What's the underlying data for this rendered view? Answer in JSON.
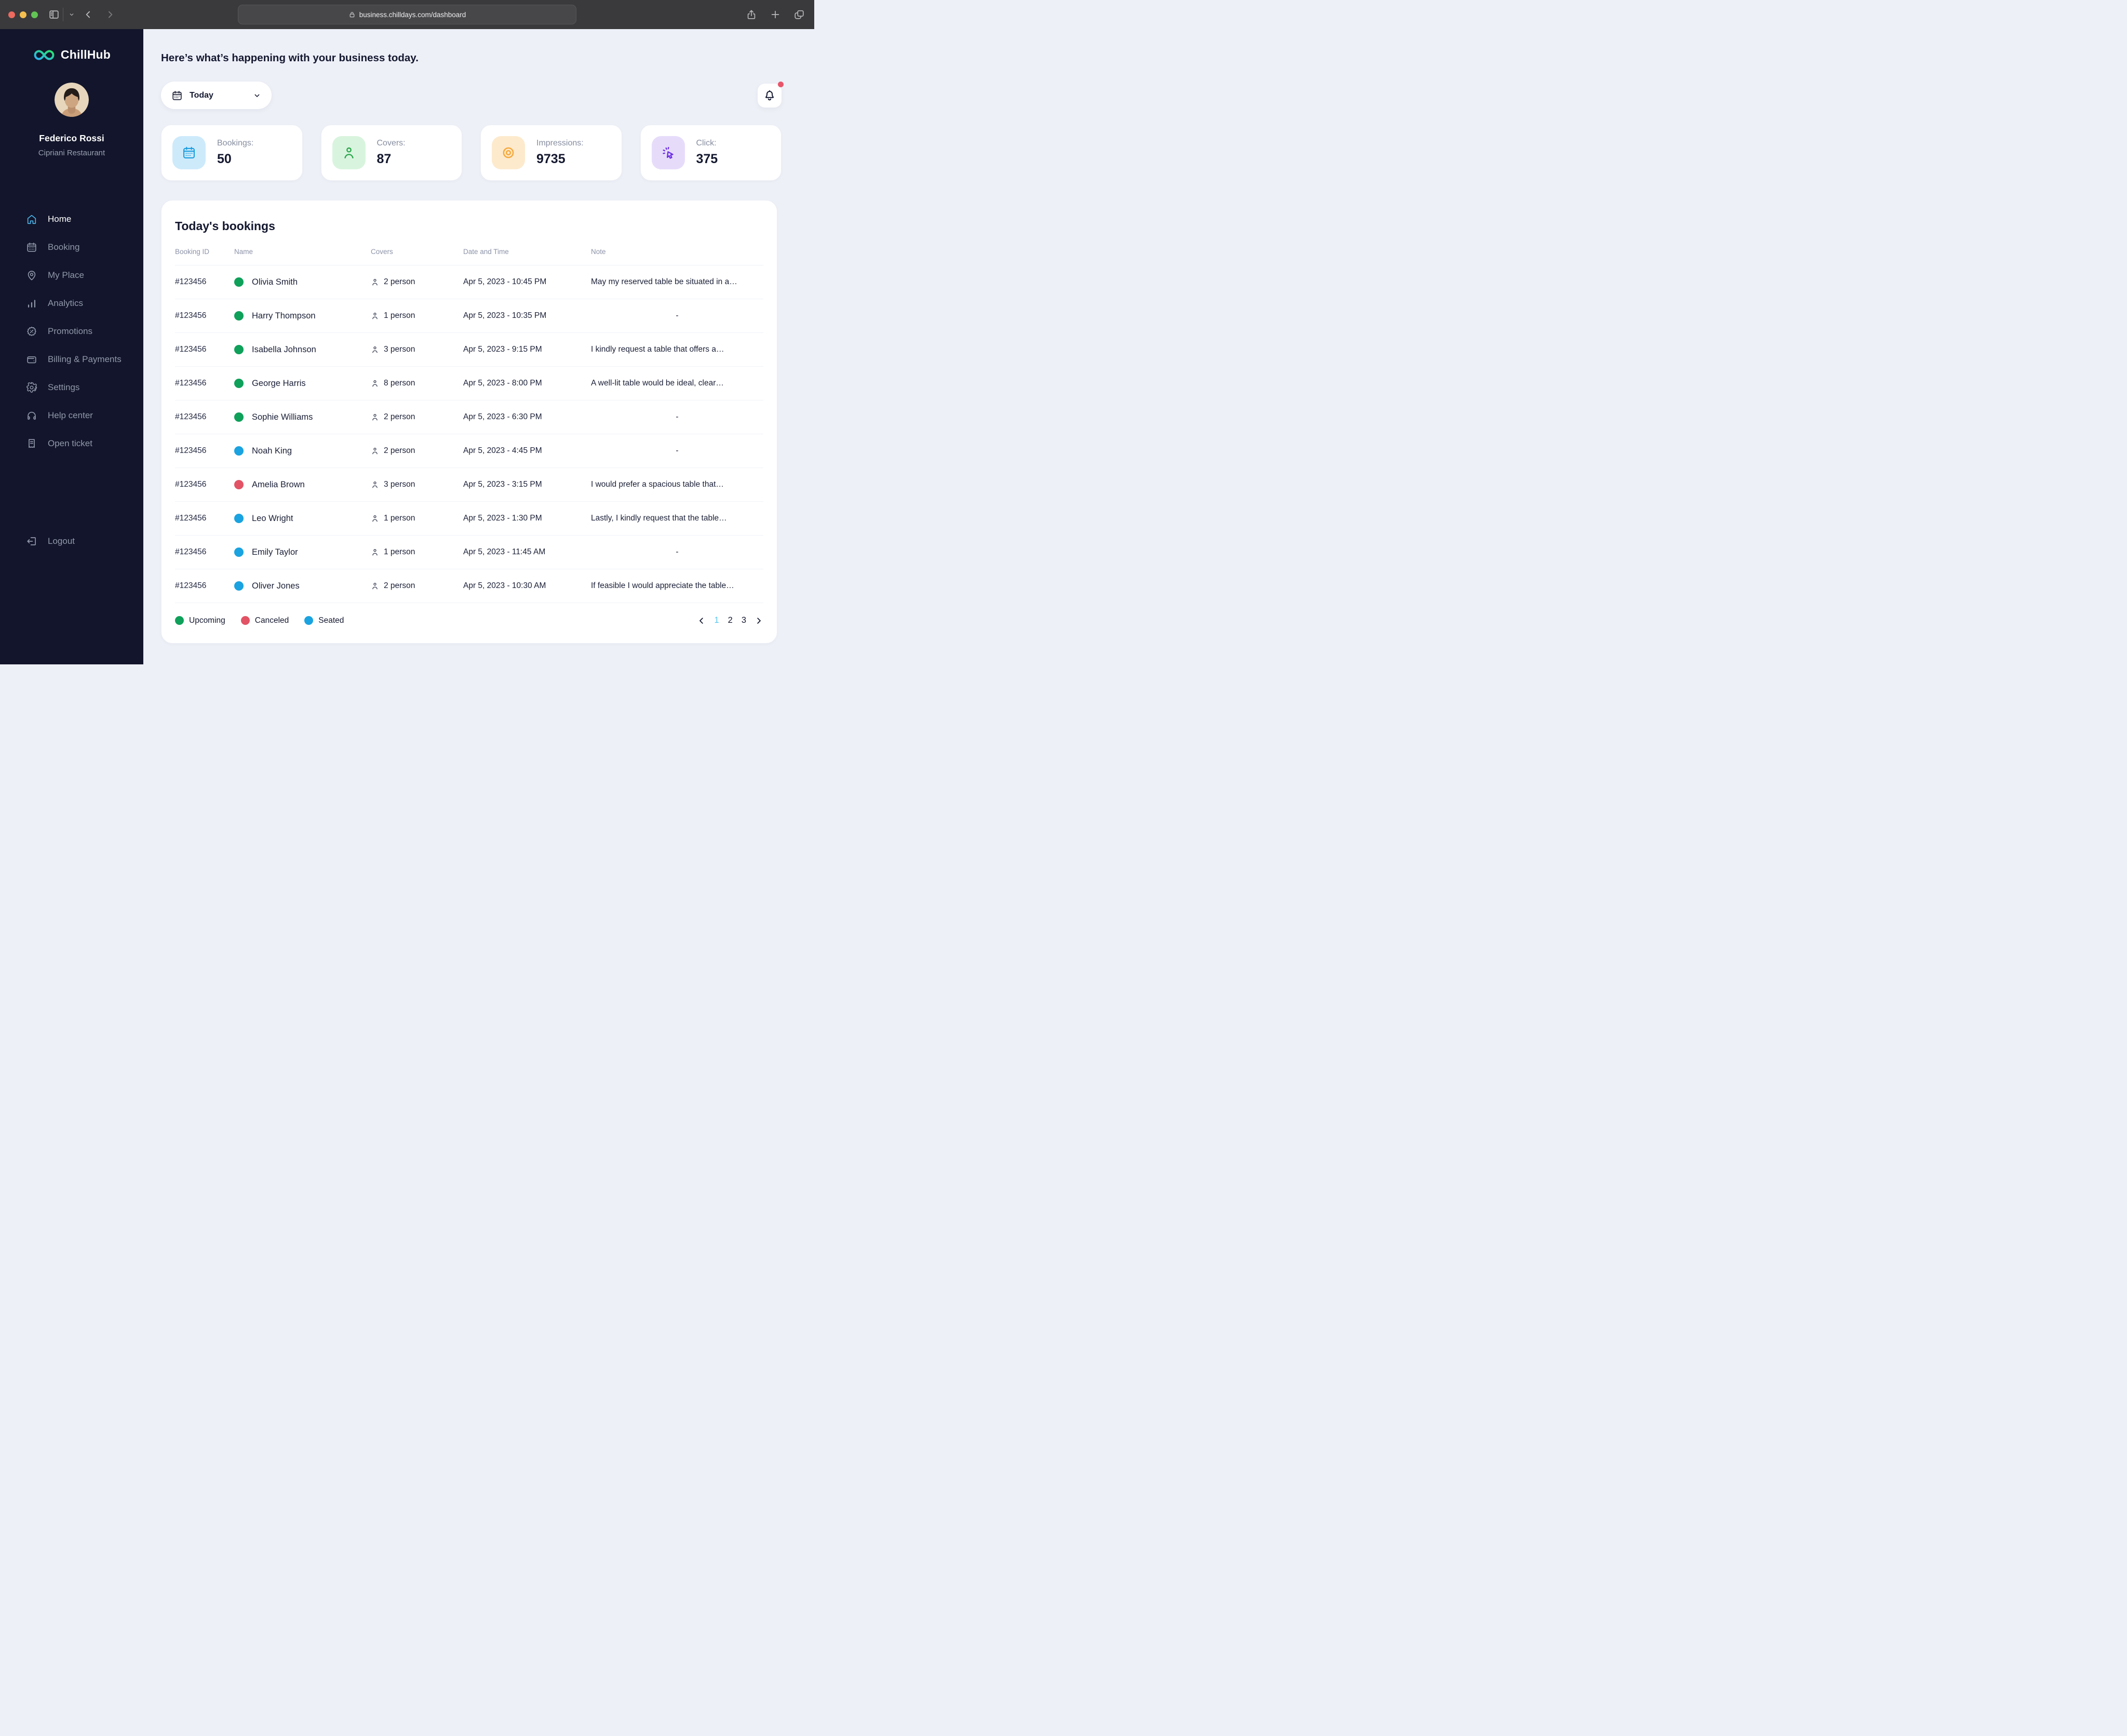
{
  "browser": {
    "url": "business.chilldays.com/dashboard"
  },
  "sidebar": {
    "brand": "ChillHub",
    "user": {
      "name": "Federico Rossi",
      "subtitle": "Cipriani Restaurant"
    },
    "nav": [
      {
        "label": "Home",
        "icon": "home",
        "active": true
      },
      {
        "label": "Booking",
        "icon": "calendar-grid",
        "active": false
      },
      {
        "label": "My Place",
        "icon": "map-pin",
        "active": false
      },
      {
        "label": "Analytics",
        "icon": "bar-chart",
        "active": false
      },
      {
        "label": "Promotions",
        "icon": "discount-badge",
        "active": false
      },
      {
        "label": "Billing & Payments",
        "icon": "wallet",
        "active": false
      },
      {
        "label": "Settings",
        "icon": "gear",
        "active": false
      },
      {
        "label": "Help center",
        "icon": "headphones",
        "active": false
      },
      {
        "label": "Open ticket",
        "icon": "receipt",
        "active": false
      }
    ],
    "logout_label": "Logout"
  },
  "header": {
    "greeting": "Here’s what’s happening with your business today.",
    "date_filter_label": "Today"
  },
  "stats": [
    {
      "icon": "calendar",
      "label": "Bookings:",
      "value": "50",
      "tile_bg": "#cdeafb",
      "icon_color": "#1a9ddd"
    },
    {
      "icon": "person",
      "label": "Covers:",
      "value": "87",
      "tile_bg": "#d9f4de",
      "icon_color": "#2aa74c"
    },
    {
      "icon": "eye",
      "label": "Impressions:",
      "value": "9735",
      "tile_bg": "#fdeacd",
      "icon_color": "#f7a93c"
    },
    {
      "icon": "cursor-click",
      "label": "Click:",
      "value": "375",
      "tile_bg": "#e6dcfa",
      "icon_color": "#6d2ee6"
    }
  ],
  "bookings": {
    "title": "Today's bookings",
    "columns": [
      "Booking ID",
      "Name",
      "Covers",
      "Date and Time",
      "Note"
    ],
    "rows": [
      {
        "id": "#123456",
        "name": "Olivia Smith",
        "status": "upcoming",
        "covers": "2 person",
        "datetime": "Apr 5, 2023 - 10:45 PM",
        "note": "May my reserved table be situated in a…"
      },
      {
        "id": "#123456",
        "name": "Harry Thompson",
        "status": "upcoming",
        "covers": "1 person",
        "datetime": "Apr 5, 2023 - 10:35 PM",
        "note": "-"
      },
      {
        "id": "#123456",
        "name": "Isabella Johnson",
        "status": "upcoming",
        "covers": "3 person",
        "datetime": "Apr 5, 2023 - 9:15 PM",
        "note": "I kindly request a table that offers a…"
      },
      {
        "id": "#123456",
        "name": "George Harris",
        "status": "upcoming",
        "covers": "8 person",
        "datetime": "Apr 5, 2023 - 8:00 PM",
        "note": "A well-lit table would be ideal, clear…"
      },
      {
        "id": "#123456",
        "name": "Sophie Williams",
        "status": "upcoming",
        "covers": "2 person",
        "datetime": "Apr 5, 2023 - 6:30 PM",
        "note": "-"
      },
      {
        "id": "#123456",
        "name": "Noah King",
        "status": "seated",
        "covers": "2 person",
        "datetime": "Apr 5, 2023 - 4:45 PM",
        "note": "-"
      },
      {
        "id": "#123456",
        "name": "Amelia Brown",
        "status": "canceled",
        "covers": "3 person",
        "datetime": "Apr 5, 2023 - 3:15 PM",
        "note": "I would prefer a spacious table that…"
      },
      {
        "id": "#123456",
        "name": "Leo Wright",
        "status": "seated",
        "covers": "1 person",
        "datetime": "Apr 5, 2023 - 1:30 PM",
        "note": "Lastly, I kindly request that the table…"
      },
      {
        "id": "#123456",
        "name": "Emily Taylor",
        "status": "seated",
        "covers": "1 person",
        "datetime": "Apr 5, 2023 - 11:45 AM",
        "note": "-"
      },
      {
        "id": "#123456",
        "name": "Oliver Jones",
        "status": "seated",
        "covers": "2 person",
        "datetime": "Apr 5, 2023 - 10:30 AM",
        "note": "If feasible I would appreciate the table…"
      }
    ],
    "legend": [
      {
        "label": "Upcoming",
        "status": "upcoming"
      },
      {
        "label": "Canceled",
        "status": "canceled"
      },
      {
        "label": "Seated",
        "status": "seated"
      }
    ],
    "pagination": {
      "pages": [
        "1",
        "2",
        "3"
      ],
      "active": "1"
    }
  },
  "colors": {
    "accent_blue": "#4db5ea",
    "status": {
      "upcoming": "#0fa05a",
      "canceled": "#e25365",
      "seated": "#1aa3e0"
    },
    "pagination_active": "#56c7f2",
    "notification_badge": "#e8556a"
  }
}
